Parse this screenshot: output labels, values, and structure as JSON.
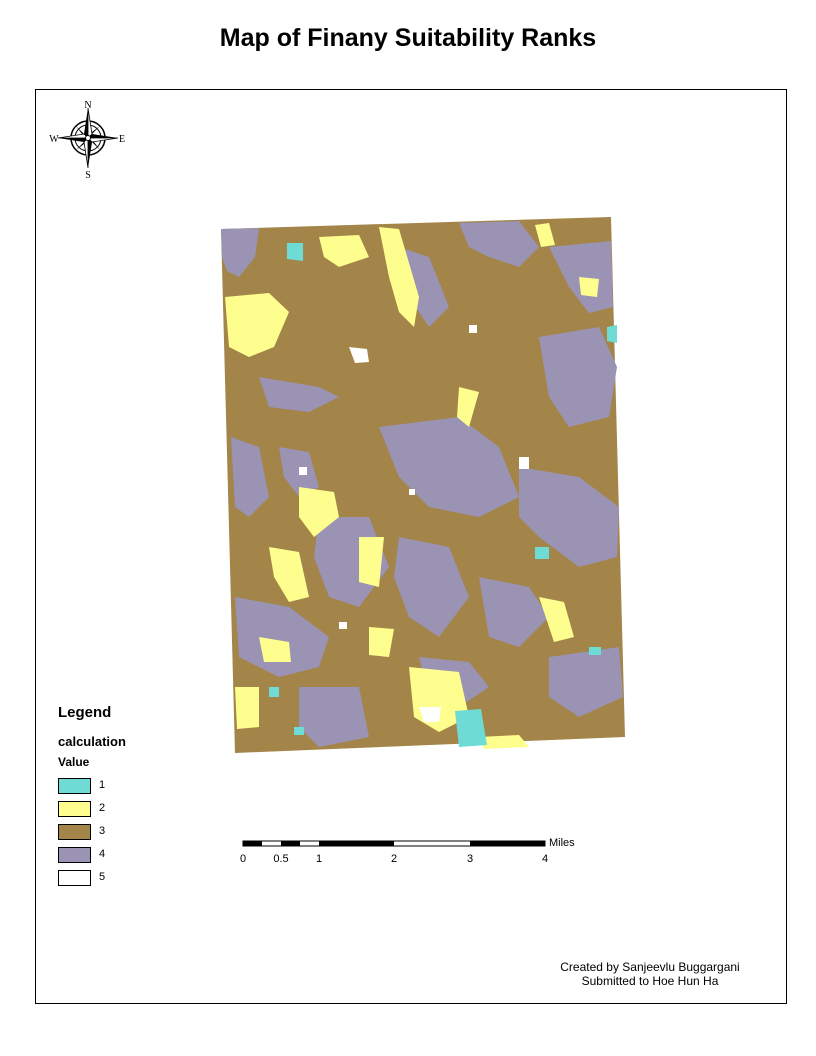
{
  "title": "Map of Finany Suitability Ranks",
  "compass": {
    "north": "N",
    "south": "S",
    "east": "E",
    "west": "W"
  },
  "legend": {
    "title": "Legend",
    "field": "calculation",
    "value_header": "Value",
    "items": [
      {
        "label": "1",
        "color": "#6fdbd5"
      },
      {
        "label": "2",
        "color": "#fefe8e"
      },
      {
        "label": "3",
        "color": "#a38449"
      },
      {
        "label": "4",
        "color": "#9b93b3"
      },
      {
        "label": "5",
        "color": "#ffffff"
      }
    ]
  },
  "scalebar": {
    "unit": "Miles",
    "ticks": [
      "0",
      "0.5",
      "1",
      "2",
      "3",
      "4"
    ]
  },
  "credits": {
    "created_by": "Created by Sanjeevlu Buggargani",
    "submitted_to": "Submitted to Hoe Hun Ha"
  }
}
